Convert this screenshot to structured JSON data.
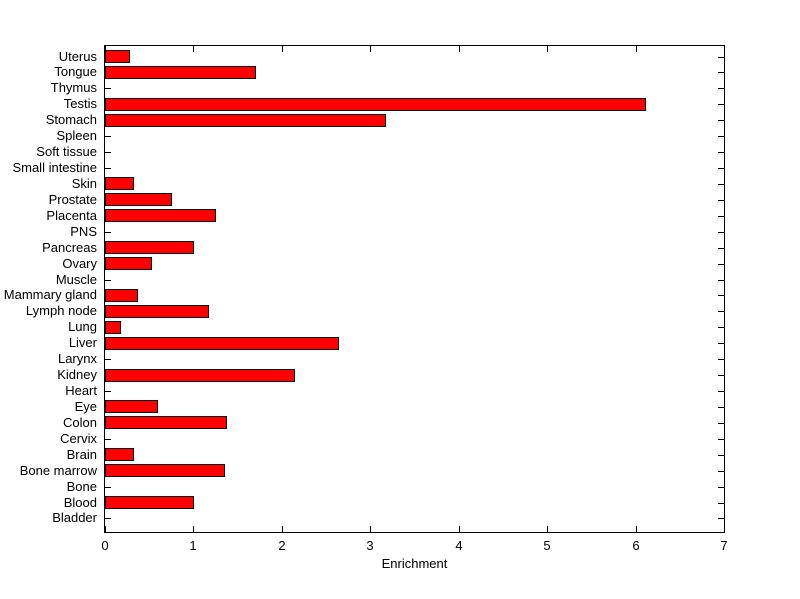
{
  "figure": {
    "background_color": "#ffffff",
    "axis_color": "#000000",
    "text_color": "#000000"
  },
  "chart_data": {
    "type": "bar",
    "orientation": "horizontal",
    "title": "",
    "xlabel": "Enrichment",
    "ylabel": "",
    "xlim": [
      0,
      7
    ],
    "xticks": [
      0,
      1,
      2,
      3,
      4,
      5,
      6,
      7
    ],
    "grid": false,
    "legend": null,
    "bar_color": "#ff0000",
    "bar_edge_color": "#000000",
    "categories": [
      "Uterus",
      "Tongue",
      "Thymus",
      "Testis",
      "Stomach",
      "Spleen",
      "Soft tissue",
      "Small intestine",
      "Skin",
      "Prostate",
      "Placenta",
      "PNS",
      "Pancreas",
      "Ovary",
      "Muscle",
      "Mammary gland",
      "Lymph node",
      "Lung",
      "Liver",
      "Larynx",
      "Kidney",
      "Heart",
      "Eye",
      "Colon",
      "Cervix",
      "Brain",
      "Bone marrow",
      "Bone",
      "Blood",
      "Bladder"
    ],
    "values": [
      0.26,
      1.69,
      0,
      6.09,
      3.16,
      0,
      0,
      0,
      0.3,
      0.74,
      1.23,
      0,
      0.98,
      0.51,
      0,
      0.35,
      1.15,
      0.16,
      2.62,
      0,
      2.13,
      0,
      0.58,
      1.36,
      0,
      0.31,
      1.34,
      0,
      0.98,
      0
    ]
  }
}
